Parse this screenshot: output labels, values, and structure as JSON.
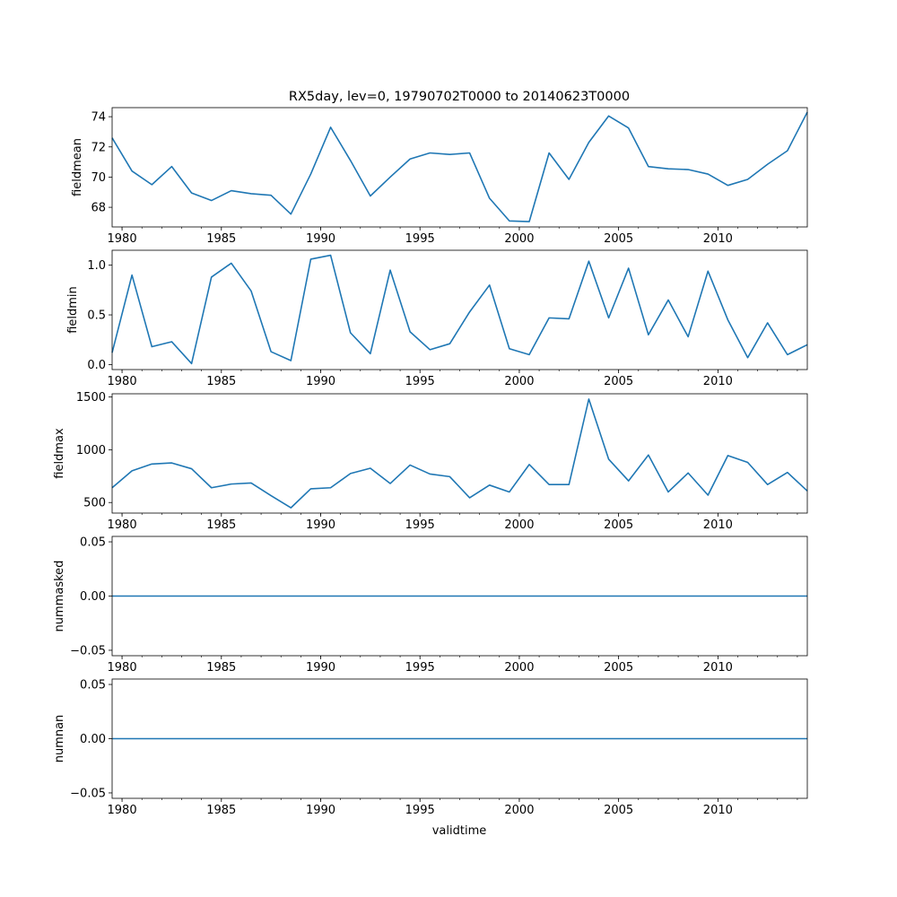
{
  "figure": {
    "title": "RX5day, lev=0, 19790702T0000 to 20140623T0000",
    "xlabel": "validtime",
    "line_color": "#1f77b4"
  },
  "chart_data": [
    {
      "type": "line",
      "name": "fieldmean",
      "ylabel": "fieldmean",
      "xlim": [
        1979.5,
        2014.5
      ],
      "ylim": [
        66.7,
        74.6
      ],
      "xticks": [
        1980,
        1985,
        1990,
        1995,
        2000,
        2005,
        2010
      ],
      "yticks": [
        68,
        70,
        72,
        74
      ],
      "ytick_labels": [
        "68",
        "70",
        "72",
        "74"
      ],
      "x": [
        1979.5,
        1980.5,
        1981.5,
        1982.5,
        1983.5,
        1984.5,
        1985.5,
        1986.5,
        1987.5,
        1988.5,
        1989.5,
        1990.5,
        1991.5,
        1992.5,
        1993.5,
        1994.5,
        1995.5,
        1996.5,
        1997.5,
        1998.5,
        1999.5,
        2000.5,
        2001.5,
        2002.5,
        2003.5,
        2004.5,
        2005.5,
        2006.5,
        2007.5,
        2008.5,
        2009.5,
        2010.5,
        2011.5,
        2012.5,
        2013.5,
        2014.5
      ],
      "values": [
        72.6,
        70.4,
        69.5,
        70.7,
        68.95,
        68.45,
        69.1,
        68.9,
        68.8,
        67.55,
        70.2,
        73.3,
        71.1,
        68.75,
        70.0,
        71.2,
        71.6,
        71.5,
        71.6,
        68.6,
        67.1,
        67.05,
        71.6,
        69.85,
        72.3,
        74.05,
        73.25,
        70.7,
        70.55,
        70.5,
        70.2,
        69.45,
        69.85,
        70.85,
        71.75,
        74.3
      ]
    },
    {
      "type": "line",
      "name": "fieldmin",
      "ylabel": "fieldmin",
      "xlim": [
        1979.5,
        2014.5
      ],
      "ylim": [
        -0.05,
        1.15
      ],
      "xticks": [
        1980,
        1985,
        1990,
        1995,
        2000,
        2005,
        2010
      ],
      "yticks": [
        0.0,
        0.5,
        1.0
      ],
      "ytick_labels": [
        "0.0",
        "0.5",
        "1.0"
      ],
      "x": [
        1979.5,
        1980.5,
        1981.5,
        1982.5,
        1983.5,
        1984.5,
        1985.5,
        1986.5,
        1987.5,
        1988.5,
        1989.5,
        1990.5,
        1991.5,
        1992.5,
        1993.5,
        1994.5,
        1995.5,
        1996.5,
        1997.5,
        1998.5,
        1999.5,
        2000.5,
        2001.5,
        2002.5,
        2003.5,
        2004.5,
        2005.5,
        2006.5,
        2007.5,
        2008.5,
        2009.5,
        2010.5,
        2011.5,
        2012.5,
        2013.5,
        2014.5
      ],
      "values": [
        0.12,
        0.9,
        0.18,
        0.23,
        0.01,
        0.88,
        1.02,
        0.74,
        0.13,
        0.04,
        1.06,
        1.1,
        0.32,
        0.11,
        0.95,
        0.33,
        0.15,
        0.21,
        0.53,
        0.8,
        0.16,
        0.1,
        0.47,
        0.46,
        1.04,
        0.47,
        0.97,
        0.3,
        0.65,
        0.28,
        0.94,
        0.45,
        0.07,
        0.42,
        0.1,
        0.2
      ]
    },
    {
      "type": "line",
      "name": "fieldmax",
      "ylabel": "fieldmax",
      "xlim": [
        1979.5,
        2014.5
      ],
      "ylim": [
        400,
        1530
      ],
      "xticks": [
        1980,
        1985,
        1990,
        1995,
        2000,
        2005,
        2010
      ],
      "yticks": [
        500,
        1000,
        1500
      ],
      "ytick_labels": [
        "500",
        "1000",
        "1500"
      ],
      "x": [
        1979.5,
        1980.5,
        1981.5,
        1982.5,
        1983.5,
        1984.5,
        1985.5,
        1986.5,
        1987.5,
        1988.5,
        1989.5,
        1990.5,
        1991.5,
        1992.5,
        1993.5,
        1994.5,
        1995.5,
        1996.5,
        1997.5,
        1998.5,
        1999.5,
        2000.5,
        2001.5,
        2002.5,
        2003.5,
        2004.5,
        2005.5,
        2006.5,
        2007.5,
        2008.5,
        2009.5,
        2010.5,
        2011.5,
        2012.5,
        2013.5,
        2014.5
      ],
      "values": [
        640,
        800,
        865,
        875,
        820,
        640,
        675,
        685,
        565,
        450,
        630,
        640,
        775,
        825,
        680,
        855,
        770,
        745,
        545,
        665,
        600,
        860,
        670,
        670,
        1480,
        910,
        705,
        950,
        600,
        780,
        570,
        945,
        880,
        670,
        785,
        610
      ]
    },
    {
      "type": "line",
      "name": "nummasked",
      "ylabel": "nummasked",
      "xlim": [
        1979.5,
        2014.5
      ],
      "ylim": [
        -0.055,
        0.055
      ],
      "xticks": [
        1980,
        1985,
        1990,
        1995,
        2000,
        2005,
        2010
      ],
      "yticks": [
        -0.05,
        0.0,
        0.05
      ],
      "ytick_labels": [
        "−0.05",
        "0.00",
        "0.05"
      ],
      "x": [
        1979.5,
        2014.5
      ],
      "values": [
        0,
        0
      ]
    },
    {
      "type": "line",
      "name": "numnan",
      "ylabel": "numnan",
      "xlim": [
        1979.5,
        2014.5
      ],
      "ylim": [
        -0.055,
        0.055
      ],
      "xticks": [
        1980,
        1985,
        1990,
        1995,
        2000,
        2005,
        2010
      ],
      "yticks": [
        -0.05,
        0.0,
        0.05
      ],
      "ytick_labels": [
        "−0.05",
        "0.00",
        "0.05"
      ],
      "x": [
        1979.5,
        2014.5
      ],
      "values": [
        0,
        0
      ]
    }
  ]
}
